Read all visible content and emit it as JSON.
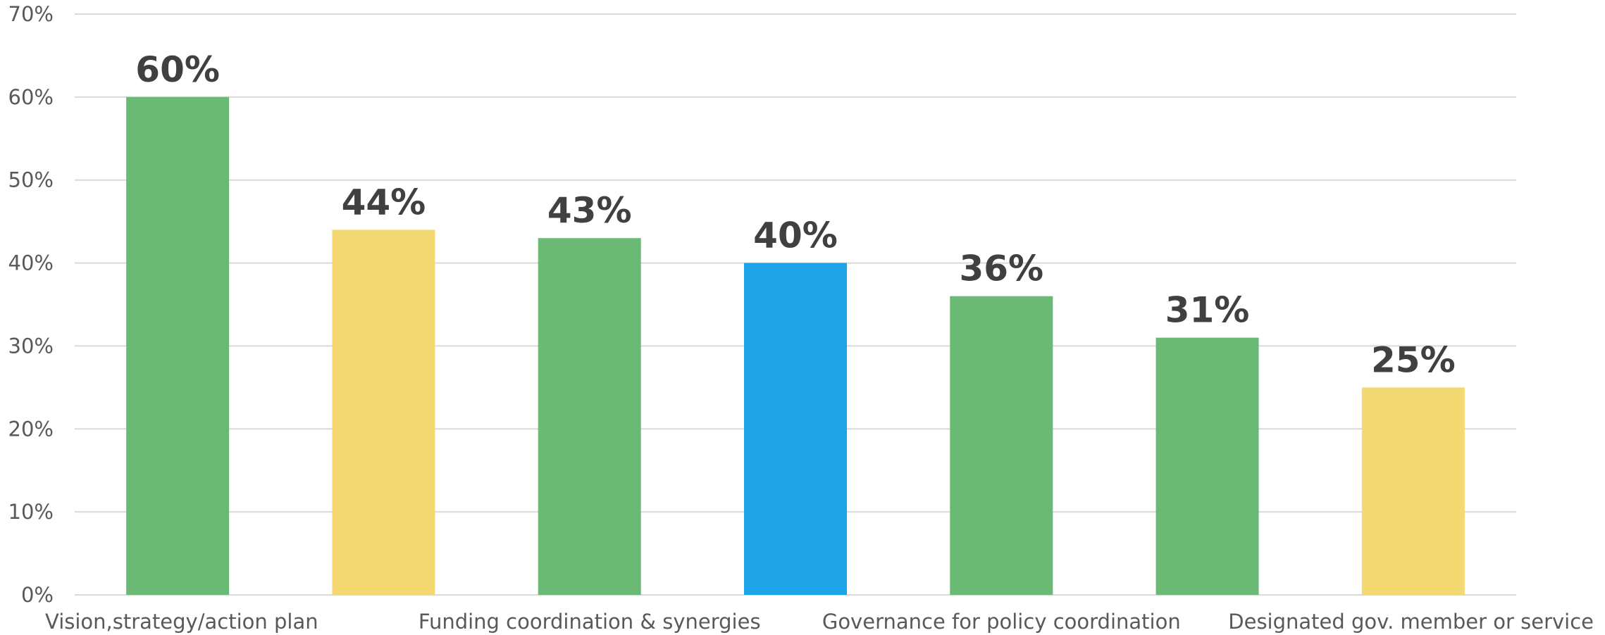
{
  "chart_data": {
    "type": "bar",
    "title": "",
    "xlabel": "",
    "ylabel": "",
    "ylim": [
      0,
      70
    ],
    "yticks": [
      0,
      10,
      20,
      30,
      40,
      50,
      60,
      70
    ],
    "ytick_labels": [
      "0%",
      "10%",
      "20%",
      "30%",
      "40%",
      "50%",
      "60%",
      "70%"
    ],
    "grid": true,
    "legend": "none",
    "categories": [
      "Vision,strategy/action plan",
      "",
      "Funding coordination & synergies",
      "",
      "Governance for policy coordination",
      "",
      "Designated gov. member or service"
    ],
    "values": [
      60,
      44,
      43,
      40,
      36,
      31,
      25
    ],
    "data_labels": [
      "60%",
      "44%",
      "43%",
      "40%",
      "36%",
      "31%",
      "25%"
    ],
    "colors": [
      "#6aba75",
      "#f4d973",
      "#6aba75",
      "#1ea4e6",
      "#6aba75",
      "#6aba75",
      "#f4d973"
    ]
  }
}
